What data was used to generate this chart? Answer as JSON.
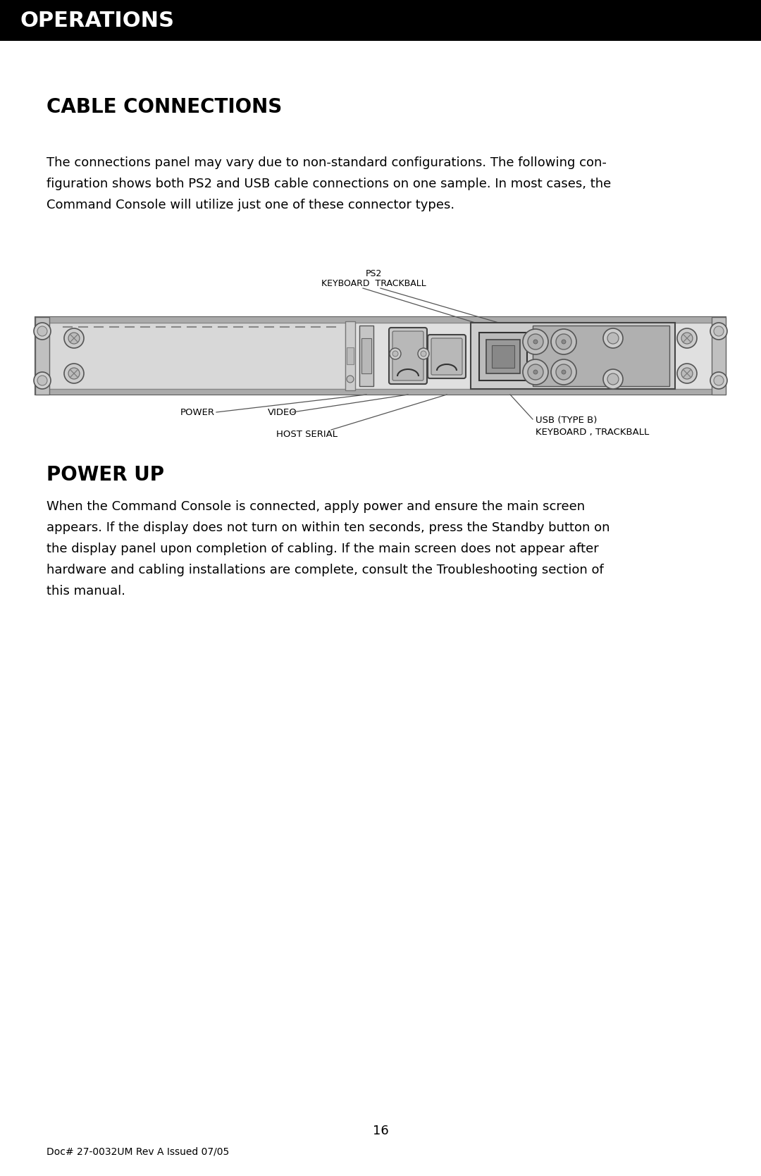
{
  "header_bg": "#000000",
  "header_text": "OPERATIONS",
  "header_text_color": "#ffffff",
  "page_bg": "#ffffff",
  "section1_title": "CABLE CONNECTIONS",
  "section1_body_line1": "The connections panel may vary due to non-standard configurations. The following con-",
  "section1_body_line2": "figuration shows both PS2 and USB cable connections on one sample. In most cases, the",
  "section1_body_line3": "Command Console will utilize just one of these connector types.",
  "section2_title": "POWER UP",
  "section2_body_line1": "When the Command Console is connected, apply power and ensure the main screen",
  "section2_body_line2": "appears. If the display does not turn on within ten seconds, press the Standby button on",
  "section2_body_line3": "the display panel upon completion of cabling. If the main screen does not appear after",
  "section2_body_line4": "hardware and cabling installations are complete, consult the Troubleshooting section of",
  "section2_body_line5": "this manual.",
  "page_number": "16",
  "footer_text": "Doc# 27-0032UM Rev A Issued 07/05"
}
